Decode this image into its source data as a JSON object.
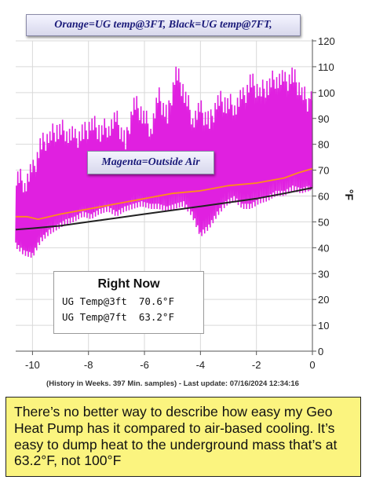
{
  "legend_top": "Orange=UG temp@3FT,  Black=UG temp@7FT,",
  "legend_mid": "Magenta=Outside Air",
  "right_now": {
    "title": "Right Now",
    "row1": "UG Temp@3ft  70.6°F",
    "row2": "UG Temp@7ft  63.2°F"
  },
  "footer": "(History in Weeks. 397 Min. samples) - Last update: 07/16/2024 12:34:16",
  "y_unit": "°F",
  "caption": "There’s no better way to describe how easy my Geo Heat Pump has it compared to air-based cooling.  It’s easy to dump heat to the underground mass that’s at 63.2°F, not 100°F",
  "colors": {
    "outside_air": "#e020e0",
    "ug_3ft": "#ff8c1a",
    "ug_7ft": "#222222",
    "plot_bg": "#ffffff",
    "caption_bg": "#fbf47f"
  },
  "chart_data": {
    "type": "line",
    "xlabel": "",
    "ylabel": "°F",
    "xlim": [
      -10.6,
      0
    ],
    "ylim": [
      0,
      120
    ],
    "x_ticks": [
      -10,
      -8,
      -6,
      -4,
      -2,
      0
    ],
    "y_ticks": [
      0,
      10,
      20,
      30,
      40,
      50,
      60,
      70,
      80,
      90,
      100,
      110,
      120
    ],
    "grid": true,
    "series": [
      {
        "name": "UG temp@3FT",
        "color": "#ff8c1a",
        "x": [
          -10.6,
          -10.2,
          -9.8,
          -9.0,
          -8.0,
          -7.0,
          -6.0,
          -5.0,
          -4.0,
          -3.0,
          -2.0,
          -1.0,
          -0.5,
          0
        ],
        "y": [
          52,
          52,
          51,
          53,
          55,
          57,
          59,
          61,
          62,
          64,
          65,
          67,
          69,
          70.6
        ]
      },
      {
        "name": "UG temp@7FT",
        "color": "#222222",
        "x": [
          -10.6,
          -10.0,
          -9.0,
          -8.0,
          -7.0,
          -6.0,
          -5.0,
          -4.0,
          -3.0,
          -2.0,
          -1.0,
          0
        ],
        "y": [
          47,
          47.5,
          48.5,
          50,
          51.5,
          53,
          54.5,
          56,
          57.5,
          59,
          61,
          63.2
        ]
      },
      {
        "name": "Outside Air",
        "color": "#e020e0",
        "x": [
          -10.6,
          -10.3,
          -10.0,
          -9.7,
          -9.4,
          -9.1,
          -8.8,
          -8.5,
          -8.2,
          -7.9,
          -7.6,
          -7.3,
          -7.0,
          -6.7,
          -6.4,
          -6.1,
          -5.8,
          -5.5,
          -5.2,
          -4.9,
          -4.6,
          -4.3,
          -4.0,
          -3.7,
          -3.4,
          -3.1,
          -2.8,
          -2.5,
          -2.2,
          -1.9,
          -1.6,
          -1.3,
          -1.0,
          -0.7,
          -0.4,
          -0.1,
          0
        ],
        "lows": [
          40,
          37,
          36,
          42,
          45,
          47,
          49,
          50,
          52,
          51,
          53,
          54,
          52,
          54,
          55,
          56,
          55,
          55,
          54,
          55,
          56,
          52,
          44,
          47,
          52,
          56,
          58,
          55,
          55,
          57,
          58,
          60,
          60,
          62,
          61,
          62,
          63
        ],
        "highs": [
          68,
          65,
          70,
          80,
          83,
          86,
          85,
          82,
          84,
          88,
          85,
          87,
          89,
          80,
          96,
          92,
          86,
          98,
          90,
          108,
          100,
          90,
          93,
          88,
          97,
          96,
          95,
          98,
          104,
          100,
          103,
          106,
          104,
          106,
          100,
          95,
          98
        ]
      }
    ]
  }
}
